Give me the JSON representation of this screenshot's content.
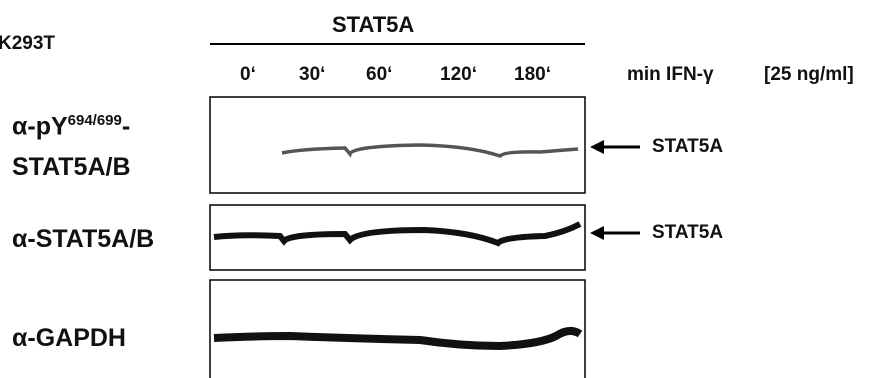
{
  "header": {
    "cell_line": "K293T",
    "construct": "STAT5A"
  },
  "lanes": [
    "0‘",
    "30‘",
    "60‘",
    "120‘",
    "180‘"
  ],
  "treatment": {
    "label": "min IFN-γ",
    "dose": "[25 ng/ml]"
  },
  "blots": [
    {
      "label_main": "α-pY",
      "label_sup": "694/699",
      "label_dash": "-",
      "label_line2": "STAT5A/B",
      "band": "STAT5A"
    },
    {
      "label": "α-STAT5A/B",
      "band": "STAT5A"
    },
    {
      "label": "α-GAPDH"
    }
  ]
}
